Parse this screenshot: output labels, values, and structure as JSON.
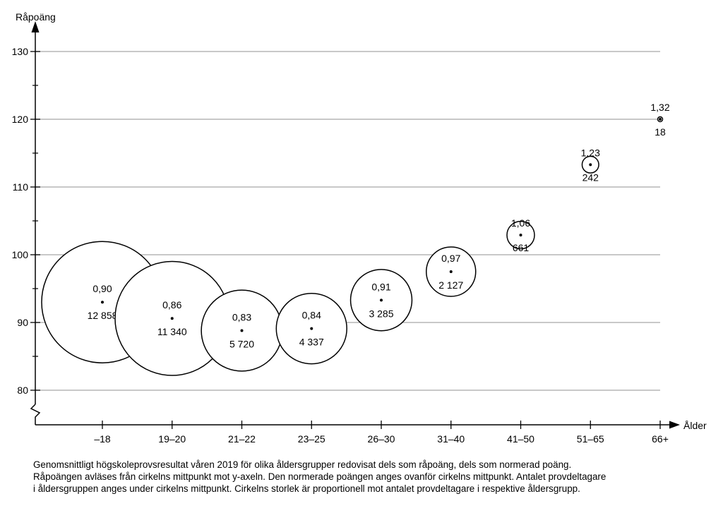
{
  "chart_data": {
    "type": "scatter",
    "ylabel": "Råpoäng",
    "xlabel": "Ålder",
    "y_ticks": [
      80,
      90,
      100,
      110,
      120,
      130
    ],
    "ylim": [
      75,
      133
    ],
    "grid": true,
    "categories": [
      "–18",
      "19–20",
      "21–22",
      "23–25",
      "26–30",
      "31–40",
      "41–50",
      "51–65",
      "66+"
    ],
    "points": [
      {
        "category": "–18",
        "y": 93.0,
        "normed": "0,90",
        "participants": "12 858"
      },
      {
        "category": "19–20",
        "y": 90.6,
        "normed": "0,86",
        "participants": "11 340"
      },
      {
        "category": "21–22",
        "y": 88.8,
        "normed": "0,83",
        "participants": "5 720"
      },
      {
        "category": "23–25",
        "y": 89.1,
        "normed": "0,84",
        "participants": "4 337"
      },
      {
        "category": "26–30",
        "y": 93.3,
        "normed": "0,91",
        "participants": "3 285"
      },
      {
        "category": "31–40",
        "y": 97.5,
        "normed": "0,97",
        "participants": "2 127"
      },
      {
        "category": "41–50",
        "y": 102.9,
        "normed": "1,06",
        "participants": "661"
      },
      {
        "category": "51–65",
        "y": 113.3,
        "normed": "1,23",
        "participants": "242"
      },
      {
        "category": "66+",
        "y": 120.0,
        "normed": "1,32",
        "participants": "18"
      }
    ]
  },
  "caption": [
    "Genomsnittligt högskoleprovsresultat våren 2019 för olika åldersgrupper redovisat dels som råpoäng, dels som normerad poäng.",
    "Råpoängen avläses från cirkelns mittpunkt mot y-axeln. Den normerade poängen anges ovanför cirkelns mittpunkt. Antalet provdeltagare",
    "i åldersgruppen anges under cirkelns mittpunkt. Cirkelns storlek är proportionell mot antalet provdeltagare i respektive åldersgrupp."
  ]
}
